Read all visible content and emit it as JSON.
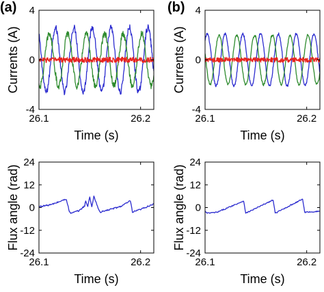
{
  "chart_data": [
    {
      "id": "a-top",
      "panel_label": "(a)",
      "type": "line",
      "xlabel": "Time (s)",
      "ylabel": "Currents (A)",
      "xlim": [
        26.1,
        26.213
      ],
      "ylim": [
        -4,
        4
      ],
      "xticks": [
        {
          "v": 26.1,
          "label": "26.1"
        },
        {
          "v": 26.2,
          "label": "26.2"
        }
      ],
      "yticks": [
        {
          "v": 4,
          "label": "4"
        },
        {
          "v": 0,
          "label": "0"
        },
        {
          "v": -4,
          "label": "-4"
        }
      ],
      "series": [
        {
          "color": "#2c2ccf",
          "kind": "sine",
          "amplitude": 2.6,
          "period": 0.0182,
          "phase": 2.25,
          "offset": 0.0,
          "noise": 0.25
        },
        {
          "color": "#2e8b2e",
          "kind": "sine",
          "amplitude": 2.1,
          "period": 0.0182,
          "phase": 4.35,
          "offset": 0.0,
          "noise": 0.28
        },
        {
          "color": "#e8231e",
          "kind": "noise",
          "amplitude": 0.0,
          "period": 0.0182,
          "phase": 0.0,
          "offset": 0.0,
          "noise": 0.22
        }
      ]
    },
    {
      "id": "b-top",
      "panel_label": "(b)",
      "type": "line",
      "xlabel": "Time (s)",
      "ylabel": "Currents (A)",
      "xlim": [
        26.1,
        26.213
      ],
      "ylim": [
        -4,
        4
      ],
      "xticks": [
        {
          "v": 26.1,
          "label": "26.1"
        },
        {
          "v": 26.2,
          "label": "26.2"
        }
      ],
      "yticks": [
        {
          "v": 4,
          "label": "4"
        },
        {
          "v": 0,
          "label": "0"
        },
        {
          "v": -4,
          "label": "-4"
        }
      ],
      "series": [
        {
          "color": "#2c2ccf",
          "kind": "sine",
          "amplitude": 2.1,
          "period": 0.0175,
          "phase": 0.8,
          "offset": 0.0,
          "noise": 0.1
        },
        {
          "color": "#2e8b2e",
          "kind": "sine",
          "amplitude": 2.0,
          "period": 0.0175,
          "phase": 2.9,
          "offset": 0.0,
          "noise": 0.1
        },
        {
          "color": "#e8231e",
          "kind": "noise",
          "amplitude": 0.0,
          "period": 0.0175,
          "phase": 0.0,
          "offset": 0.0,
          "noise": 0.2
        }
      ]
    },
    {
      "id": "a-bottom",
      "type": "line",
      "xlabel": "Time (s)",
      "ylabel": "Flux angle (rad)",
      "xlim": [
        26.1,
        26.213
      ],
      "ylim": [
        -24,
        24
      ],
      "xticks": [
        {
          "v": 26.1,
          "label": "26.1"
        },
        {
          "v": 26.2,
          "label": "26.2"
        }
      ],
      "yticks": [
        {
          "v": 24,
          "label": "24"
        },
        {
          "v": 12,
          "label": "12"
        },
        {
          "v": 0,
          "label": "0"
        },
        {
          "v": -12,
          "label": "-12"
        },
        {
          "v": -24,
          "label": "-24"
        }
      ],
      "series": [
        {
          "color": "#2c2ccf",
          "kind": "points",
          "x": [
            26.1,
            26.112,
            26.127,
            26.13,
            26.132,
            26.14,
            26.145,
            26.146,
            26.148,
            26.15,
            26.152,
            26.154,
            26.157,
            26.16,
            26.18,
            26.19,
            26.192,
            26.2,
            26.213
          ],
          "y": [
            0.5,
            1.5,
            4.5,
            -2.5,
            -3,
            -1.5,
            1.0,
            3.5,
            0.5,
            5.5,
            0.5,
            6.0,
            1.5,
            -2.5,
            0.5,
            3.5,
            -2.5,
            -1.0,
            2.0
          ],
          "noise": 0.4
        }
      ]
    },
    {
      "id": "b-bottom",
      "type": "line",
      "xlabel": "Time (s)",
      "ylabel": "Flux angle (rad)",
      "xlim": [
        26.1,
        26.213
      ],
      "ylim": [
        -24,
        24
      ],
      "xticks": [
        {
          "v": 26.1,
          "label": "26.1"
        },
        {
          "v": 26.2,
          "label": "26.2"
        }
      ],
      "yticks": [
        {
          "v": 24,
          "label": "24"
        },
        {
          "v": 12,
          "label": "12"
        },
        {
          "v": 0,
          "label": "0"
        },
        {
          "v": -12,
          "label": "-12"
        },
        {
          "v": -24,
          "label": "-24"
        }
      ],
      "series": [
        {
          "color": "#2c2ccf",
          "kind": "points",
          "x": [
            26.1,
            26.102,
            26.112,
            26.138,
            26.14,
            26.167,
            26.169,
            26.196,
            26.198,
            26.213
          ],
          "y": [
            -2.0,
            -3.0,
            -2.5,
            3.5,
            -3.0,
            4.0,
            -3.0,
            4.5,
            -2.5,
            -2.0
          ],
          "noise": 0.3
        }
      ]
    }
  ]
}
